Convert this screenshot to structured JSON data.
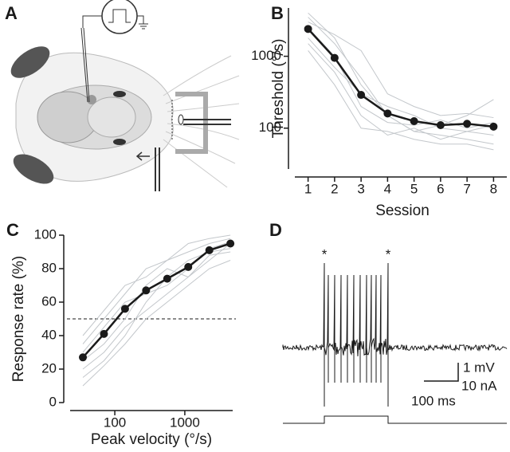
{
  "chart_data": [
    {
      "type": "line",
      "panel": "B",
      "ylabel": "Threshold (°/s)",
      "xlabel": "Session",
      "x": [
        1,
        2,
        3,
        4,
        5,
        6,
        7,
        8
      ],
      "xlim": [
        0.5,
        8.5
      ],
      "xticks": [
        1,
        2,
        3,
        4,
        5,
        6,
        7,
        8
      ],
      "yscale": "log",
      "ylim": [
        27,
        4700
      ],
      "yticks": [
        100,
        1000
      ],
      "series": [
        {
          "color": "#c3c7cb",
          "values": [
            4000,
            1800,
            400,
            150,
            90,
            80,
            70,
            60
          ]
        },
        {
          "color": "#c3c7cb",
          "values": [
            3000,
            2000,
            1200,
            300,
            200,
            150,
            160,
            140
          ]
        },
        {
          "color": "#c3c7cb",
          "values": [
            1500,
            600,
            150,
            80,
            100,
            70,
            90,
            80
          ]
        },
        {
          "color": "#c3c7cb",
          "values": [
            2500,
            1000,
            200,
            120,
            110,
            130,
            100,
            120
          ]
        },
        {
          "color": "#c3c7cb",
          "values": [
            1800,
            700,
            300,
            200,
            150,
            100,
            90,
            110
          ]
        },
        {
          "color": "#c3c7cb",
          "values": [
            3500,
            1500,
            500,
            150,
            90,
            110,
            150,
            250
          ]
        },
        {
          "color": "#c3c7cb",
          "values": [
            1200,
            400,
            100,
            90,
            70,
            60,
            60,
            50
          ]
        },
        {
          "color": "#1a1a1a",
          "markers": true,
          "values": [
            2400,
            950,
            290,
            160,
            125,
            110,
            115,
            105
          ]
        }
      ]
    },
    {
      "type": "line",
      "panel": "C",
      "ylabel": "Response rate (%)",
      "xlabel": "Peak velocity (°/s)",
      "x": [
        35,
        70,
        140,
        280,
        560,
        1120,
        2240,
        4480
      ],
      "xscale": "log",
      "xlim": [
        23,
        4830
      ],
      "xticks": [
        100,
        1000
      ],
      "ylim": [
        0,
        100
      ],
      "yticks": [
        0,
        20,
        40,
        60,
        80,
        100
      ],
      "reference_line": 50,
      "series": [
        {
          "color": "#c3c7cb",
          "values": [
            20,
            30,
            45,
            55,
            65,
            75,
            85,
            95
          ]
        },
        {
          "color": "#c3c7cb",
          "values": [
            35,
            50,
            65,
            80,
            85,
            90,
            95,
            98
          ]
        },
        {
          "color": "#c3c7cb",
          "values": [
            15,
            25,
            40,
            60,
            75,
            85,
            90,
            92
          ]
        },
        {
          "color": "#c3c7cb",
          "values": [
            30,
            45,
            60,
            65,
            70,
            80,
            92,
            96
          ]
        },
        {
          "color": "#c3c7cb",
          "values": [
            10,
            22,
            35,
            50,
            60,
            70,
            80,
            85
          ]
        },
        {
          "color": "#c3c7cb",
          "values": [
            40,
            55,
            70,
            75,
            85,
            95,
            98,
            100
          ]
        },
        {
          "color": "#c3c7cb",
          "values": [
            25,
            35,
            50,
            70,
            80,
            75,
            88,
            90
          ]
        },
        {
          "color": "#1a1a1a",
          "markers": true,
          "values": [
            27,
            41,
            56,
            67,
            74,
            81,
            91,
            95
          ]
        }
      ]
    }
  ],
  "illustration": {
    "panel": "A"
  },
  "trace": {
    "panel": "D",
    "markers": [
      "*",
      "*"
    ],
    "scale_bar": {
      "voltage": "1 mV",
      "current": "10 nA",
      "time": "100 ms"
    }
  }
}
